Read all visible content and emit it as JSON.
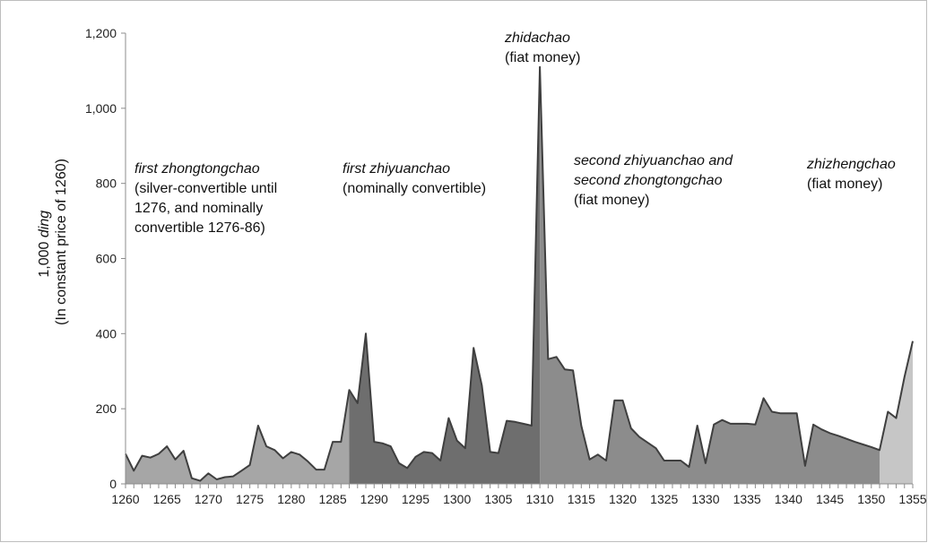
{
  "chart_data": {
    "type": "area",
    "ylabel_prefix": "1,000 ",
    "ylabel_emph": "ding",
    "ylabel_line2": "(In constant price of 1260)",
    "xlim": [
      1260,
      1355
    ],
    "ylim": [
      0,
      1200
    ],
    "yticks": [
      0,
      200,
      400,
      600,
      800,
      1000,
      1200
    ],
    "ytick_labels": [
      "0",
      "200",
      "400",
      "600",
      "800",
      "1,000",
      "1,200"
    ],
    "xticks": [
      1260,
      1265,
      1270,
      1275,
      1280,
      1285,
      1290,
      1295,
      1300,
      1305,
      1310,
      1315,
      1320,
      1325,
      1330,
      1335,
      1340,
      1345,
      1350,
      1355
    ],
    "xtick_labels": [
      "1260",
      "1265",
      "1270",
      "1275",
      "1280",
      "1285",
      "1290",
      "1295",
      "1300",
      "1305",
      "1310",
      "1315",
      "1320",
      "1325",
      "1330",
      "1335",
      "1340",
      "1345",
      "1350",
      "1355"
    ],
    "grid": false,
    "periods": [
      {
        "start": 1260,
        "end": 1287,
        "color": "#a6a6a6"
      },
      {
        "start": 1287,
        "end": 1310,
        "color": "#6e6e6e"
      },
      {
        "start": 1310,
        "end": 1351,
        "color": "#8c8c8c"
      },
      {
        "start": 1351,
        "end": 1355,
        "color": "#c6c6c6"
      }
    ],
    "line_color": "#3f3f3f",
    "points": [
      [
        1260,
        80
      ],
      [
        1261,
        35
      ],
      [
        1262,
        75
      ],
      [
        1263,
        70
      ],
      [
        1264,
        80
      ],
      [
        1265,
        100
      ],
      [
        1266,
        65
      ],
      [
        1267,
        88
      ],
      [
        1268,
        15
      ],
      [
        1269,
        8
      ],
      [
        1270,
        28
      ],
      [
        1271,
        12
      ],
      [
        1272,
        18
      ],
      [
        1273,
        20
      ],
      [
        1274,
        35
      ],
      [
        1275,
        50
      ],
      [
        1276,
        155
      ],
      [
        1277,
        100
      ],
      [
        1278,
        90
      ],
      [
        1279,
        68
      ],
      [
        1280,
        85
      ],
      [
        1281,
        78
      ],
      [
        1282,
        60
      ],
      [
        1283,
        38
      ],
      [
        1284,
        38
      ],
      [
        1285,
        112
      ],
      [
        1286,
        112
      ],
      [
        1287,
        250
      ],
      [
        1288,
        215
      ],
      [
        1289,
        400
      ],
      [
        1290,
        112
      ],
      [
        1291,
        108
      ],
      [
        1292,
        100
      ],
      [
        1293,
        55
      ],
      [
        1294,
        42
      ],
      [
        1295,
        72
      ],
      [
        1296,
        85
      ],
      [
        1297,
        82
      ],
      [
        1298,
        62
      ],
      [
        1299,
        175
      ],
      [
        1300,
        115
      ],
      [
        1301,
        95
      ],
      [
        1302,
        362
      ],
      [
        1303,
        262
      ],
      [
        1304,
        85
      ],
      [
        1305,
        82
      ],
      [
        1306,
        168
      ],
      [
        1307,
        165
      ],
      [
        1308,
        160
      ],
      [
        1309,
        155
      ],
      [
        1310,
        1110
      ],
      [
        1311,
        332
      ],
      [
        1312,
        338
      ],
      [
        1313,
        305
      ],
      [
        1314,
        302
      ],
      [
        1315,
        155
      ],
      [
        1316,
        65
      ],
      [
        1317,
        78
      ],
      [
        1318,
        62
      ],
      [
        1319,
        222
      ],
      [
        1320,
        222
      ],
      [
        1321,
        148
      ],
      [
        1322,
        125
      ],
      [
        1323,
        110
      ],
      [
        1324,
        95
      ],
      [
        1325,
        62
      ],
      [
        1326,
        62
      ],
      [
        1327,
        62
      ],
      [
        1328,
        45
      ],
      [
        1329,
        155
      ],
      [
        1330,
        55
      ],
      [
        1331,
        158
      ],
      [
        1332,
        170
      ],
      [
        1333,
        160
      ],
      [
        1334,
        160
      ],
      [
        1335,
        160
      ],
      [
        1336,
        158
      ],
      [
        1337,
        228
      ],
      [
        1338,
        192
      ],
      [
        1339,
        188
      ],
      [
        1340,
        188
      ],
      [
        1341,
        188
      ],
      [
        1342,
        48
      ],
      [
        1343,
        158
      ],
      [
        1344,
        145
      ],
      [
        1345,
        135
      ],
      [
        1346,
        128
      ],
      [
        1347,
        120
      ],
      [
        1348,
        112
      ],
      [
        1349,
        105
      ],
      [
        1350,
        98
      ],
      [
        1351,
        90
      ],
      [
        1352,
        192
      ],
      [
        1353,
        175
      ],
      [
        1354,
        285
      ],
      [
        1355,
        380
      ]
    ],
    "annotations": [
      {
        "id": "zhongtong",
        "lines": [
          [
            "first zhongtongchao",
            true
          ],
          [
            "(silver-convertible until",
            false
          ],
          [
            "1276, and nominally",
            false
          ],
          [
            "convertible 1276-86)",
            false
          ]
        ]
      },
      {
        "id": "zhiyuan",
        "lines": [
          [
            "first zhiyuanchao",
            true
          ],
          [
            "(nominally convertible)",
            false
          ]
        ]
      },
      {
        "id": "zhida",
        "lines": [
          [
            "zhidachao",
            true
          ],
          [
            "(fiat money)",
            false
          ]
        ]
      },
      {
        "id": "second",
        "lines": [
          [
            "second zhiyuanchao and",
            true
          ],
          [
            "second zhongtongchao",
            true
          ],
          [
            "(fiat money)",
            false
          ]
        ]
      },
      {
        "id": "zhizheng",
        "lines": [
          [
            "zhizhengchao",
            true
          ],
          [
            "(fiat money)",
            false
          ]
        ]
      }
    ]
  }
}
